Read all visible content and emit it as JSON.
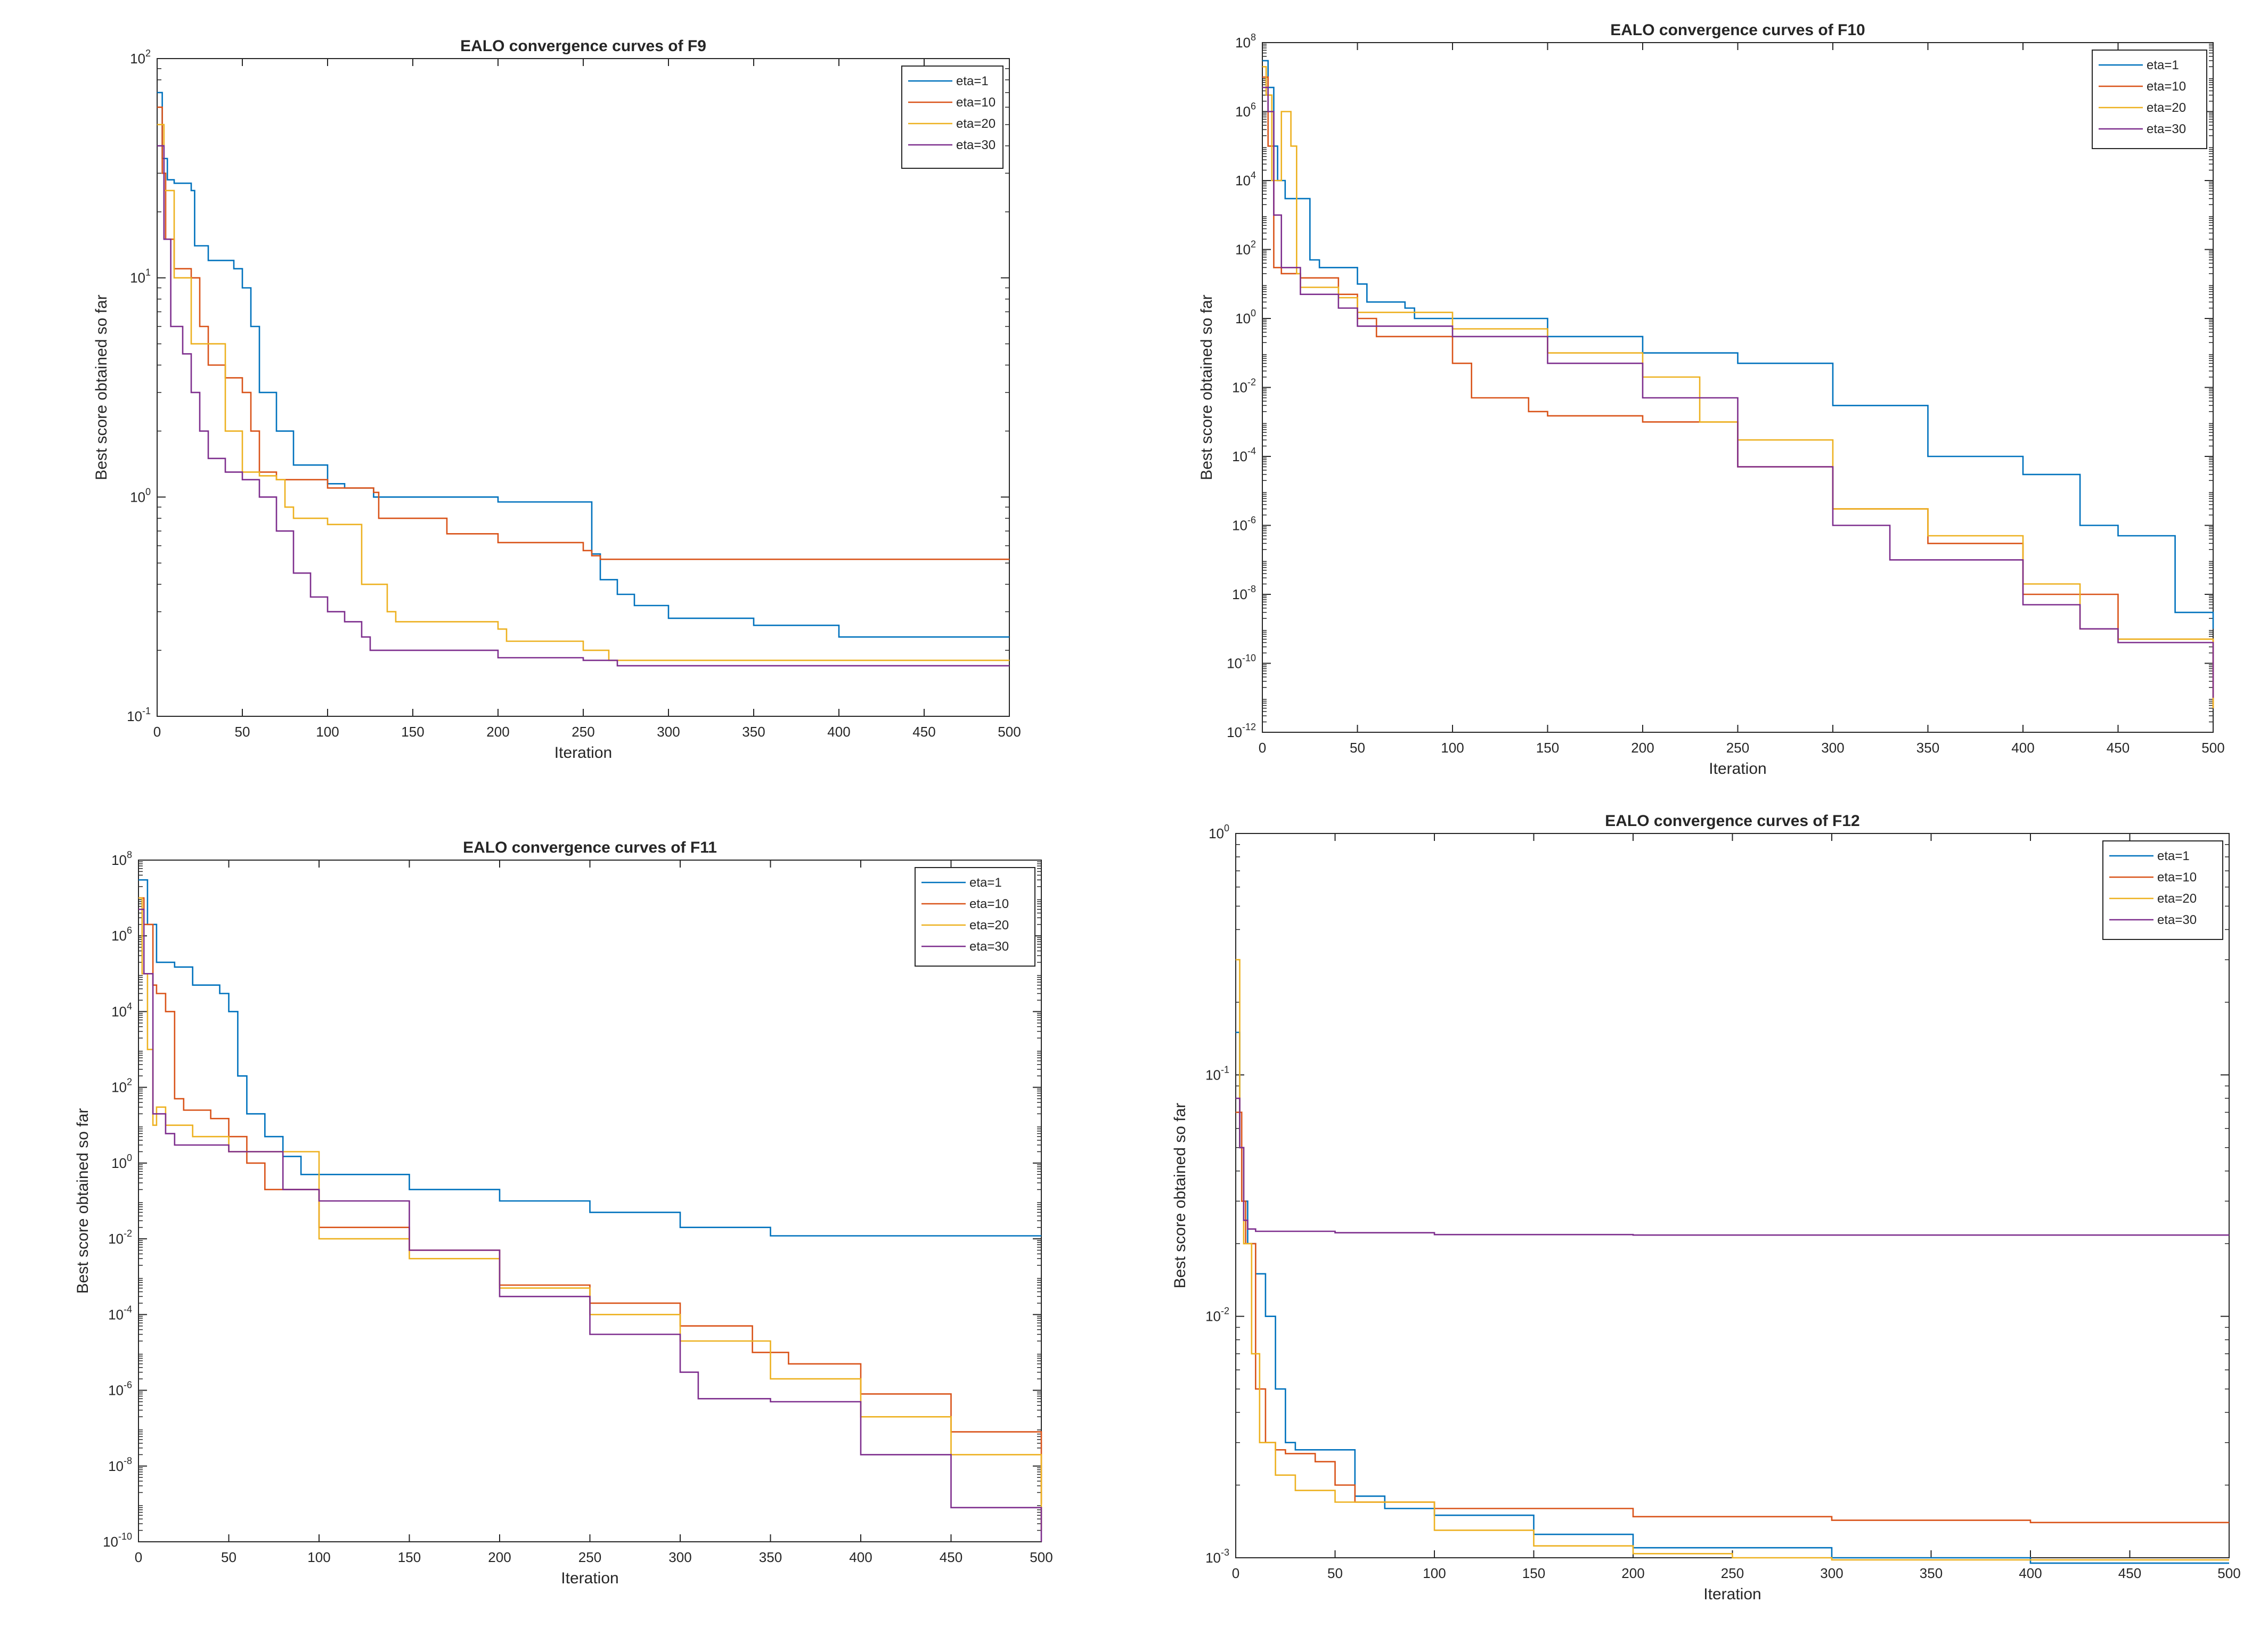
{
  "chart_data": [
    {
      "type": "line",
      "title": "EALO convergence curves of F9",
      "xlabel": "Iteration",
      "ylabel": "Best score obtained so far",
      "yscale": "log",
      "xlim": [
        0,
        500
      ],
      "ylim": [
        0.1,
        100
      ],
      "xticks": [
        0,
        50,
        100,
        150,
        200,
        250,
        300,
        350,
        400,
        450,
        500
      ],
      "yticks": [
        {
          "base": "10",
          "exp": "-1",
          "v": 0.1
        },
        {
          "base": "10",
          "exp": "0",
          "v": 1
        },
        {
          "base": "10",
          "exp": "1",
          "v": 10
        },
        {
          "base": "10",
          "exp": "2",
          "v": 100
        }
      ],
      "grid": false,
      "legend_position": "top-right",
      "series": [
        {
          "name": "eta=1",
          "color": "#0072BD",
          "x": [
            0,
            3,
            6,
            10,
            20,
            22,
            30,
            45,
            50,
            55,
            60,
            70,
            80,
            100,
            110,
            127,
            150,
            200,
            250,
            255,
            260,
            270,
            280,
            300,
            350,
            400,
            450,
            500
          ],
          "y": [
            70,
            35,
            28,
            27,
            25,
            14,
            12,
            11,
            9,
            6,
            3,
            2,
            1.4,
            1.15,
            1.1,
            1.0,
            1.0,
            0.95,
            0.95,
            0.55,
            0.42,
            0.36,
            0.32,
            0.28,
            0.26,
            0.23,
            0.23,
            0.23
          ]
        },
        {
          "name": "eta=10",
          "color": "#D95319",
          "x": [
            0,
            3,
            5,
            10,
            20,
            25,
            30,
            40,
            50,
            55,
            60,
            70,
            80,
            100,
            127,
            130,
            160,
            170,
            200,
            250,
            255,
            260,
            300,
            400,
            500
          ],
          "y": [
            60,
            30,
            15,
            11,
            10,
            6,
            4,
            3.5,
            3,
            2,
            1.3,
            1.2,
            1.2,
            1.1,
            1.05,
            0.8,
            0.8,
            0.68,
            0.62,
            0.57,
            0.54,
            0.52,
            0.52,
            0.52,
            0.52
          ]
        },
        {
          "name": "eta=20",
          "color": "#EDB120",
          "x": [
            0,
            4,
            10,
            20,
            40,
            50,
            60,
            70,
            75,
            80,
            100,
            120,
            135,
            140,
            200,
            205,
            250,
            265,
            300,
            400,
            500
          ],
          "y": [
            50,
            25,
            10,
            5,
            2.0,
            1.3,
            1.25,
            1.2,
            0.9,
            0.8,
            0.75,
            0.4,
            0.3,
            0.27,
            0.25,
            0.22,
            0.2,
            0.18,
            0.18,
            0.18,
            0.18
          ]
        },
        {
          "name": "eta=30",
          "color": "#7E2F8E",
          "x": [
            0,
            4,
            8,
            15,
            20,
            25,
            30,
            40,
            50,
            60,
            70,
            80,
            90,
            100,
            110,
            120,
            125,
            200,
            250,
            270,
            300,
            400,
            500
          ],
          "y": [
            40,
            15,
            6,
            4.5,
            3,
            2,
            1.5,
            1.3,
            1.2,
            1.0,
            0.7,
            0.45,
            0.35,
            0.3,
            0.27,
            0.23,
            0.2,
            0.185,
            0.18,
            0.17,
            0.17,
            0.17,
            0.17
          ]
        }
      ]
    },
    {
      "type": "line",
      "title": "EALO convergence curves of F10",
      "xlabel": "Iteration",
      "ylabel": "Best score obtained so far",
      "yscale": "log",
      "xlim": [
        0,
        500
      ],
      "ylim": [
        1e-12,
        100000000.0
      ],
      "xticks": [
        0,
        50,
        100,
        150,
        200,
        250,
        300,
        350,
        400,
        450,
        500
      ],
      "yticks": [
        {
          "base": "10",
          "exp": "-12",
          "v": 1e-12
        },
        {
          "base": "10",
          "exp": "-10",
          "v": 1e-10
        },
        {
          "base": "10",
          "exp": "-8",
          "v": 1e-08
        },
        {
          "base": "10",
          "exp": "-6",
          "v": 1e-06
        },
        {
          "base": "10",
          "exp": "-4",
          "v": 0.0001
        },
        {
          "base": "10",
          "exp": "-2",
          "v": 0.01
        },
        {
          "base": "10",
          "exp": "0",
          "v": 1
        },
        {
          "base": "10",
          "exp": "2",
          "v": 100
        },
        {
          "base": "10",
          "exp": "4",
          "v": 10000.0
        },
        {
          "base": "10",
          "exp": "6",
          "v": 1000000.0
        },
        {
          "base": "10",
          "exp": "8",
          "v": 100000000.0
        }
      ],
      "grid": false,
      "legend_position": "top-right",
      "series": [
        {
          "name": "eta=1",
          "color": "#0072BD",
          "x": [
            0,
            3,
            6,
            8,
            12,
            25,
            30,
            50,
            55,
            75,
            80,
            100,
            150,
            200,
            250,
            300,
            350,
            400,
            430,
            450,
            480,
            500
          ],
          "y": [
            30000000.0,
            5000000.0,
            100000.0,
            10000.0,
            3000.0,
            50,
            30,
            10,
            3,
            2,
            1,
            1,
            0.3,
            0.1,
            0.05,
            0.003,
            0.0001,
            3e-05,
            1e-06,
            5e-07,
            3e-09,
            1e-09
          ]
        },
        {
          "name": "eta=10",
          "color": "#D95319",
          "x": [
            0,
            3,
            6,
            10,
            20,
            40,
            50,
            60,
            100,
            110,
            140,
            150,
            200,
            250,
            300,
            350,
            400,
            450,
            500
          ],
          "y": [
            10000000.0,
            100000.0,
            30,
            20,
            15,
            5,
            1,
            0.3,
            0.05,
            0.005,
            0.002,
            0.0015,
            0.001,
            5e-05,
            3e-06,
            3e-07,
            1e-08,
            5e-10,
            5e-12
          ]
        },
        {
          "name": "eta=20",
          "color": "#EDB120",
          "x": [
            0,
            2,
            5,
            10,
            15,
            18,
            20,
            40,
            50,
            100,
            150,
            200,
            230,
            250,
            300,
            350,
            400,
            430,
            450,
            500
          ],
          "y": [
            20000000.0,
            3000000.0,
            10000.0,
            1000000.0,
            100000.0,
            20,
            8,
            4,
            1.5,
            0.5,
            0.1,
            0.02,
            0.001,
            0.0003,
            3e-06,
            5e-07,
            2e-08,
            1e-09,
            5e-10,
            5e-12
          ]
        },
        {
          "name": "eta=30",
          "color": "#7E2F8E",
          "x": [
            0,
            3,
            6,
            10,
            20,
            40,
            50,
            100,
            150,
            200,
            250,
            300,
            330,
            360,
            400,
            430,
            450,
            500
          ],
          "y": [
            5000000.0,
            1000000.0,
            1000.0,
            30,
            5,
            2,
            0.6,
            0.3,
            0.05,
            0.005,
            5e-05,
            1e-06,
            1e-07,
            1e-07,
            5e-09,
            1e-09,
            4e-10,
            1e-11
          ]
        }
      ]
    },
    {
      "type": "line",
      "title": "EALO convergence curves of F11",
      "xlabel": "Iteration",
      "ylabel": "Best score obtained so far",
      "yscale": "log",
      "xlim": [
        0,
        500
      ],
      "ylim": [
        1e-10,
        100000000.0
      ],
      "xticks": [
        0,
        50,
        100,
        150,
        200,
        250,
        300,
        350,
        400,
        450,
        500
      ],
      "yticks": [
        {
          "base": "10",
          "exp": "-10",
          "v": 1e-10
        },
        {
          "base": "10",
          "exp": "-8",
          "v": 1e-08
        },
        {
          "base": "10",
          "exp": "-6",
          "v": 1e-06
        },
        {
          "base": "10",
          "exp": "-4",
          "v": 0.0001
        },
        {
          "base": "10",
          "exp": "-2",
          "v": 0.01
        },
        {
          "base": "10",
          "exp": "0",
          "v": 1
        },
        {
          "base": "10",
          "exp": "2",
          "v": 100
        },
        {
          "base": "10",
          "exp": "4",
          "v": 10000.0
        },
        {
          "base": "10",
          "exp": "6",
          "v": 1000000.0
        },
        {
          "base": "10",
          "exp": "8",
          "v": 100000000.0
        }
      ],
      "grid": false,
      "legend_position": "top-right",
      "series": [
        {
          "name": "eta=1",
          "color": "#0072BD",
          "x": [
            0,
            5,
            10,
            20,
            30,
            45,
            50,
            55,
            60,
            70,
            80,
            90,
            130,
            150,
            200,
            250,
            300,
            350,
            400,
            500
          ],
          "y": [
            30000000.0,
            2000000.0,
            200000.0,
            150000.0,
            50000.0,
            30000.0,
            10000.0,
            200,
            20,
            5,
            1.5,
            0.5,
            0.5,
            0.2,
            0.1,
            0.05,
            0.02,
            0.012,
            0.012,
            0.012
          ]
        },
        {
          "name": "eta=10",
          "color": "#D95319",
          "x": [
            0,
            3,
            8,
            10,
            15,
            20,
            25,
            40,
            50,
            60,
            70,
            100,
            150,
            200,
            250,
            300,
            340,
            360,
            400,
            450,
            500
          ],
          "y": [
            10000000.0,
            2000000.0,
            50000.0,
            30000.0,
            10000.0,
            50,
            25,
            15,
            5,
            1,
            0.2,
            0.02,
            0.005,
            0.0006,
            0.0002,
            5e-05,
            1e-05,
            5e-06,
            8e-07,
            8e-08,
            1e-09
          ]
        },
        {
          "name": "eta=20",
          "color": "#EDB120",
          "x": [
            0,
            2,
            5,
            8,
            10,
            15,
            30,
            50,
            100,
            150,
            200,
            250,
            300,
            350,
            400,
            450,
            500
          ],
          "y": [
            10000000.0,
            100000.0,
            1000.0,
            10,
            30,
            10,
            5,
            2,
            0.01,
            0.003,
            0.0005,
            0.0001,
            2e-05,
            2e-06,
            2e-07,
            2e-08,
            2e-10
          ]
        },
        {
          "name": "eta=30",
          "color": "#7E2F8E",
          "x": [
            0,
            3,
            8,
            15,
            20,
            50,
            80,
            100,
            150,
            200,
            250,
            300,
            310,
            350,
            400,
            450,
            500
          ],
          "y": [
            5000000.0,
            100000.0,
            20,
            6,
            3,
            2,
            0.2,
            0.1,
            0.005,
            0.0003,
            3e-05,
            3e-06,
            6e-07,
            5e-07,
            2e-08,
            8e-10,
            1e-10
          ]
        }
      ]
    },
    {
      "type": "line",
      "title": "EALO convergence curves of F12",
      "xlabel": "Iteration",
      "ylabel": "Best score obtained so far",
      "yscale": "log",
      "xlim": [
        0,
        500
      ],
      "ylim": [
        0.001,
        1
      ],
      "xticks": [
        0,
        50,
        100,
        150,
        200,
        250,
        300,
        350,
        400,
        450,
        500
      ],
      "yticks": [
        {
          "base": "10",
          "exp": "-3",
          "v": 0.001
        },
        {
          "base": "10",
          "exp": "-2",
          "v": 0.01
        },
        {
          "base": "10",
          "exp": "-1",
          "v": 0.1
        },
        {
          "base": "10",
          "exp": "0",
          "v": 1
        }
      ],
      "grid": false,
      "legend_position": "top-right",
      "series": [
        {
          "name": "eta=1",
          "color": "#0072BD",
          "x": [
            0,
            2,
            4,
            6,
            10,
            15,
            20,
            25,
            30,
            50,
            60,
            75,
            100,
            150,
            200,
            300,
            400,
            500
          ],
          "y": [
            0.15,
            0.05,
            0.03,
            0.02,
            0.015,
            0.01,
            0.005,
            0.003,
            0.0028,
            0.0028,
            0.0018,
            0.0016,
            0.0015,
            0.00125,
            0.0011,
            0.001,
            0.00095,
            0.00095
          ]
        },
        {
          "name": "eta=10",
          "color": "#D95319",
          "x": [
            0,
            3,
            5,
            10,
            15,
            20,
            25,
            40,
            50,
            60,
            100,
            200,
            300,
            400,
            500
          ],
          "y": [
            0.07,
            0.03,
            0.02,
            0.005,
            0.003,
            0.0028,
            0.0027,
            0.0025,
            0.002,
            0.0017,
            0.0016,
            0.00148,
            0.00143,
            0.0014,
            0.0014
          ]
        },
        {
          "name": "eta=20",
          "color": "#EDB120",
          "x": [
            0,
            2,
            4,
            8,
            12,
            20,
            30,
            50,
            100,
            150,
            200,
            250,
            300,
            500
          ],
          "y": [
            0.3,
            0.05,
            0.02,
            0.007,
            0.003,
            0.0022,
            0.0019,
            0.0017,
            0.0013,
            0.00112,
            0.00104,
            0.001,
            0.00098,
            0.00098
          ]
        },
        {
          "name": "eta=30",
          "color": "#7E2F8E",
          "x": [
            0,
            2,
            4,
            6,
            10,
            50,
            100,
            200,
            300,
            400,
            500
          ],
          "y": [
            0.08,
            0.05,
            0.025,
            0.023,
            0.0225,
            0.0222,
            0.0218,
            0.0217,
            0.0217,
            0.0217,
            0.0217
          ]
        }
      ]
    }
  ]
}
